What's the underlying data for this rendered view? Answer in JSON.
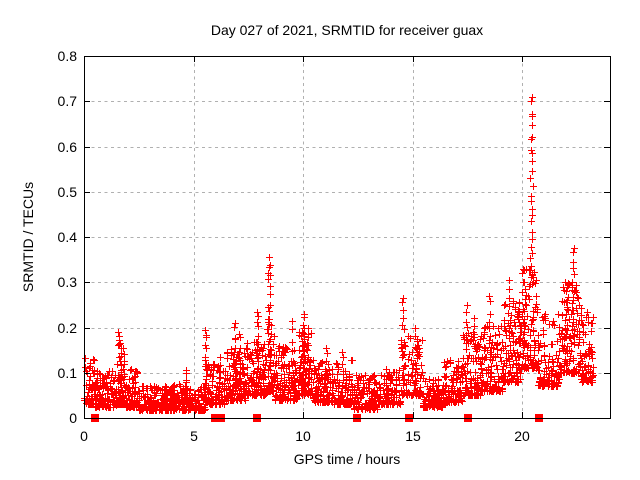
{
  "figure": {
    "background": "#ffffff"
  },
  "chart_data": {
    "type": "scatter",
    "title": "Day 027 of 2021, SRMTID for receiver guax",
    "xlabel": "GPS time / hours",
    "ylabel": "SRMTID / TECUs",
    "xlim": [
      0,
      24
    ],
    "ylim": [
      0,
      0.8
    ],
    "xticks": [
      0,
      5,
      10,
      15,
      20
    ],
    "xtick_labels": [
      "0",
      "5",
      "10",
      "15",
      "20"
    ],
    "yticks": [
      0,
      0.1,
      0.2,
      0.3,
      0.4,
      0.5,
      0.6,
      0.7,
      0.8
    ],
    "ytick_labels": [
      "0",
      "0.1",
      "0.2",
      "0.3",
      "0.4",
      "0.5",
      "0.6",
      "0.7",
      "0.8"
    ],
    "grid": "dashed",
    "grid_color": "#b0b0b0",
    "axis_color": "#000000",
    "legend": "none",
    "series": [
      {
        "name": "SRMTID",
        "marker": "plus",
        "color": "#ff0000"
      }
    ],
    "x_data_range": [
      0,
      23.25
    ],
    "max_point": {
      "x": 20.4,
      "y": 0.71
    },
    "peaks": [
      {
        "x": 1.65,
        "y": 0.19
      },
      {
        "x": 5.55,
        "y": 0.2
      },
      {
        "x": 6.9,
        "y": 0.21
      },
      {
        "x": 7.92,
        "y": 0.235
      },
      {
        "x": 8.45,
        "y": 0.355
      },
      {
        "x": 10.05,
        "y": 0.23
      },
      {
        "x": 14.55,
        "y": 0.265
      },
      {
        "x": 17.45,
        "y": 0.25
      },
      {
        "x": 18.5,
        "y": 0.27
      },
      {
        "x": 19.4,
        "y": 0.305
      },
      {
        "x": 20.42,
        "y": 0.71
      },
      {
        "x": 22.3,
        "y": 0.375
      }
    ],
    "zero_marker_x": [
      0.48,
      5.98,
      6.12,
      6.27,
      7.9,
      12.45,
      14.85,
      17.5,
      20.75
    ],
    "seed": 20210127,
    "envelope_segments_format": "[x_start, x_end, n_points, y_min, y_max]",
    "envelope_segments": [
      [
        0.0,
        0.5,
        55,
        0.03,
        0.135
      ],
      [
        0.5,
        1.5,
        110,
        0.025,
        0.105
      ],
      [
        1.5,
        1.9,
        40,
        0.03,
        0.1
      ],
      [
        1.9,
        2.5,
        70,
        0.025,
        0.11
      ],
      [
        2.5,
        5.5,
        340,
        0.018,
        0.075
      ],
      [
        5.5,
        6.45,
        90,
        0.03,
        0.12
      ],
      [
        6.45,
        7.35,
        110,
        0.04,
        0.16
      ],
      [
        7.35,
        8.3,
        110,
        0.05,
        0.17
      ],
      [
        8.3,
        8.7,
        45,
        0.06,
        0.22
      ],
      [
        8.7,
        9.8,
        120,
        0.04,
        0.16
      ],
      [
        9.8,
        10.45,
        80,
        0.05,
        0.19
      ],
      [
        10.45,
        11.35,
        100,
        0.035,
        0.13
      ],
      [
        11.35,
        12.25,
        100,
        0.03,
        0.13
      ],
      [
        12.25,
        13.4,
        120,
        0.02,
        0.095
      ],
      [
        13.4,
        14.45,
        100,
        0.03,
        0.11
      ],
      [
        14.45,
        15.45,
        90,
        0.05,
        0.185
      ],
      [
        15.45,
        16.35,
        100,
        0.025,
        0.09
      ],
      [
        16.35,
        17.25,
        100,
        0.035,
        0.13
      ],
      [
        17.25,
        18.1,
        100,
        0.05,
        0.19
      ],
      [
        18.1,
        19.1,
        110,
        0.06,
        0.21
      ],
      [
        19.1,
        19.95,
        110,
        0.08,
        0.26
      ],
      [
        19.95,
        20.7,
        90,
        0.11,
        0.33
      ],
      [
        20.7,
        21.7,
        110,
        0.07,
        0.23
      ],
      [
        21.7,
        22.65,
        110,
        0.1,
        0.3
      ],
      [
        22.65,
        23.25,
        70,
        0.08,
        0.25
      ]
    ],
    "spikes_format": "[x_center, x_halfwidth, y_base, y_peak, n_points]",
    "spikes": [
      [
        1.62,
        0.12,
        0.06,
        0.19,
        22
      ],
      [
        1.78,
        0.06,
        0.05,
        0.155,
        10
      ],
      [
        4.62,
        0.05,
        0.04,
        0.105,
        8
      ],
      [
        5.55,
        0.07,
        0.05,
        0.195,
        14
      ],
      [
        6.2,
        0.06,
        0.05,
        0.135,
        8
      ],
      [
        6.9,
        0.07,
        0.06,
        0.21,
        12
      ],
      [
        7.1,
        0.06,
        0.06,
        0.185,
        10
      ],
      [
        7.92,
        0.05,
        0.07,
        0.235,
        14
      ],
      [
        8.45,
        0.08,
        0.08,
        0.355,
        26
      ],
      [
        9.5,
        0.05,
        0.07,
        0.215,
        8
      ],
      [
        10.05,
        0.07,
        0.07,
        0.23,
        16
      ],
      [
        10.2,
        0.05,
        0.06,
        0.2,
        10
      ],
      [
        11.05,
        0.05,
        0.05,
        0.155,
        8
      ],
      [
        11.8,
        0.05,
        0.05,
        0.145,
        8
      ],
      [
        14.55,
        0.06,
        0.07,
        0.265,
        14
      ],
      [
        15.15,
        0.06,
        0.06,
        0.2,
        10
      ],
      [
        17.45,
        0.06,
        0.07,
        0.25,
        12
      ],
      [
        17.8,
        0.06,
        0.07,
        0.22,
        10
      ],
      [
        18.5,
        0.06,
        0.08,
        0.27,
        12
      ],
      [
        19.4,
        0.06,
        0.1,
        0.305,
        12
      ],
      [
        20.1,
        0.06,
        0.12,
        0.3,
        10
      ],
      [
        20.42,
        0.07,
        0.3,
        0.71,
        26
      ],
      [
        22.0,
        0.06,
        0.12,
        0.3,
        10
      ],
      [
        22.3,
        0.08,
        0.15,
        0.375,
        16
      ]
    ]
  }
}
